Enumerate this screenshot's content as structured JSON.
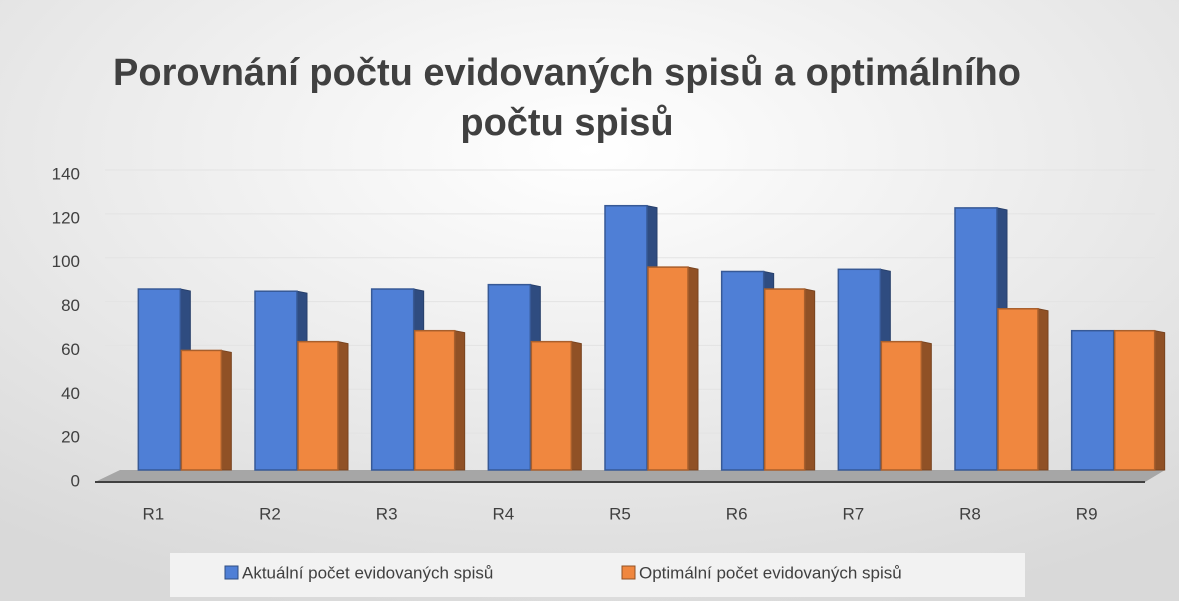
{
  "chart_data": {
    "type": "bar3d",
    "title_lines": [
      "Porovnání počtu evidovaných spisů a optimálního",
      "počtu spisů"
    ],
    "categories": [
      "R1",
      "R2",
      "R3",
      "R4",
      "R5",
      "R6",
      "R7",
      "R8",
      "R9"
    ],
    "series": [
      {
        "name": "Aktuální počet evidovaných spisů",
        "color": "#4f7fd6",
        "values": [
          88,
          87,
          88,
          90,
          126,
          96,
          97,
          125,
          69
        ]
      },
      {
        "name": "Optimální počet evidovaných spisů",
        "color": "#f0873f",
        "values": [
          60,
          64,
          69,
          64,
          98,
          88,
          64,
          79,
          69
        ]
      }
    ],
    "ylim": [
      0,
      140
    ],
    "yticks": [
      0,
      20,
      40,
      60,
      80,
      100,
      120,
      140
    ],
    "grid": true,
    "legend": "bottom"
  }
}
